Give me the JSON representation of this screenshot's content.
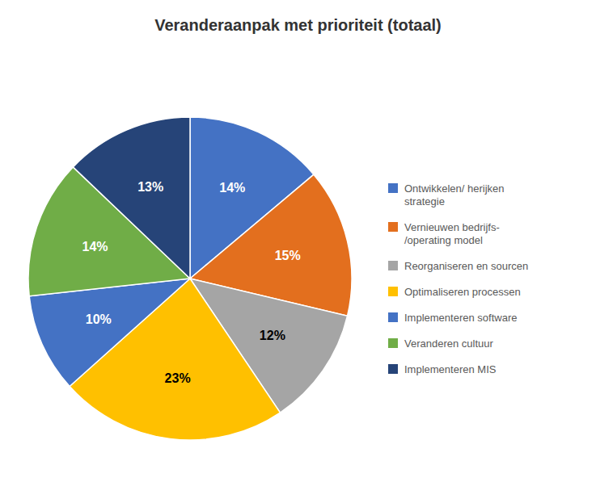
{
  "chart_data": {
    "type": "pie",
    "title": "Veranderaanpak met prioriteit (totaal)",
    "categories": [
      "Ontwikkelen/ herijken\nstrategie",
      "Vernieuwen bedrijfs-\n/operating model",
      "Reorganiseren en sourcen",
      "Optimaliseren processen",
      "Implementeren  software",
      "Veranderen cultuur",
      "Implementeren MIS"
    ],
    "values": [
      14,
      15,
      12,
      23,
      10,
      14,
      13
    ],
    "value_labels": [
      "14%",
      "15%",
      "12%",
      "23%",
      "10%",
      "14%",
      "13%"
    ],
    "colors": [
      "#4472C4",
      "#E36F1E",
      "#A5A5A5",
      "#FFC000",
      "#4472C4",
      "#70AD47",
      "#264478"
    ],
    "data_labels": true,
    "legend": "right"
  }
}
